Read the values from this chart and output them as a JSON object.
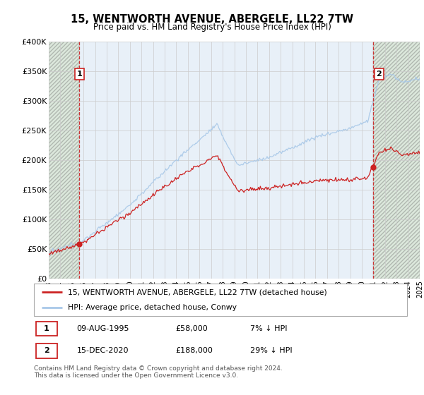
{
  "title": "15, WENTWORTH AVENUE, ABERGELE, LL22 7TW",
  "subtitle": "Price paid vs. HM Land Registry's House Price Index (HPI)",
  "ylim": [
    0,
    400000
  ],
  "yticks": [
    0,
    50000,
    100000,
    150000,
    200000,
    250000,
    300000,
    350000,
    400000
  ],
  "ytick_labels": [
    "£0",
    "£50K",
    "£100K",
    "£150K",
    "£200K",
    "£250K",
    "£300K",
    "£350K",
    "£400K"
  ],
  "hpi_color": "#a8c8e8",
  "price_color": "#cc2222",
  "sale1_date": 1995.6,
  "sale1_price": 58000,
  "sale1_label": "1",
  "sale2_date": 2020.95,
  "sale2_price": 188000,
  "sale2_label": "2",
  "legend_line1": "15, WENTWORTH AVENUE, ABERGELE, LL22 7TW (detached house)",
  "legend_line2": "HPI: Average price, detached house, Conwy",
  "table_row1": [
    "1",
    "09-AUG-1995",
    "£58,000",
    "7% ↓ HPI"
  ],
  "table_row2": [
    "2",
    "15-DEC-2020",
    "£188,000",
    "29% ↓ HPI"
  ],
  "footnote": "Contains HM Land Registry data © Crown copyright and database right 2024.\nThis data is licensed under the Open Government Licence v3.0.",
  "grid_color": "#cccccc",
  "xmin": 1993,
  "xmax": 2025
}
